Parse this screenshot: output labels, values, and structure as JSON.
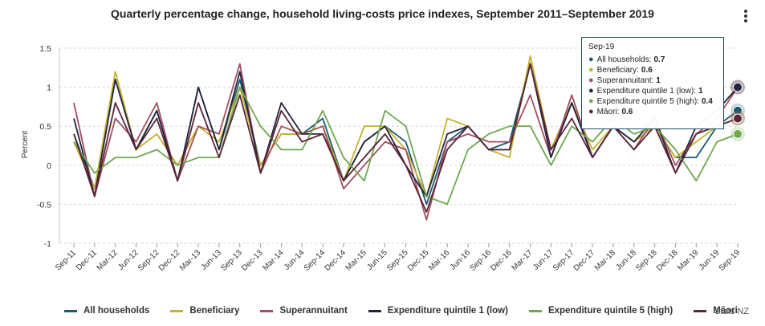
{
  "title": "Quarterly percentage change, household living-costs price indexes, September 2011–September 2019",
  "source": "Stats NZ",
  "menu_icon": "hamburger-menu-icon",
  "chart_data": {
    "type": "line",
    "title": "Quarterly percentage change, household living-costs price indexes, September 2011–September 2019",
    "xlabel": "",
    "ylabel": "Percent",
    "ylim": [
      -1,
      1.5
    ],
    "yticks": [
      "-1",
      "-0.5",
      "0",
      "0.5",
      "1",
      "1.5"
    ],
    "grid": "horizontal dashed",
    "legend_position": "bottom",
    "categories": [
      "Sep-11",
      "Dec-11",
      "Mar-12",
      "Jun-12",
      "Sep-12",
      "Dec-12",
      "Mar-13",
      "Jun-13",
      "Sep-13",
      "Dec-13",
      "Mar-14",
      "Jun-14",
      "Sep-14",
      "Dec-14",
      "Mar-15",
      "Jun-15",
      "Sep-15",
      "Dec-15",
      "Mar-16",
      "Jun-16",
      "Sep-16",
      "Dec-16",
      "Mar-17",
      "Jun-17",
      "Sep-17",
      "Dec-17",
      "Mar-18",
      "Jun-18",
      "Sep-18",
      "Dec-18",
      "Mar-19",
      "Jun-19",
      "Sep-19"
    ],
    "series": [
      {
        "name": "All households",
        "color": "#1b5a73",
        "values": [
          0.4,
          -0.3,
          1.1,
          0.2,
          0.7,
          -0.2,
          1.0,
          0.2,
          1.1,
          0.0,
          0.4,
          0.4,
          0.6,
          -0.2,
          0.3,
          0.5,
          0.3,
          -0.5,
          0.3,
          0.5,
          0.2,
          0.3,
          1.3,
          0.2,
          0.8,
          0.1,
          0.5,
          0.3,
          0.5,
          0.1,
          0.1,
          0.5,
          0.7
        ]
      },
      {
        "name": "Beneficiary",
        "color": "#c5b32e",
        "values": [
          0.3,
          -0.3,
          1.2,
          0.2,
          0.4,
          0.0,
          0.5,
          0.3,
          1.0,
          0.0,
          0.4,
          0.4,
          0.5,
          -0.2,
          0.5,
          0.5,
          0.2,
          -0.4,
          0.6,
          0.5,
          0.2,
          0.1,
          1.4,
          0.2,
          0.8,
          0.2,
          0.5,
          0.3,
          0.5,
          0.1,
          0.3,
          0.5,
          0.6
        ]
      },
      {
        "name": "Superannuitant",
        "color": "#a14f5e",
        "values": [
          0.8,
          -0.4,
          0.6,
          0.3,
          0.8,
          -0.2,
          0.5,
          0.4,
          1.3,
          -0.1,
          0.5,
          0.4,
          0.5,
          -0.3,
          0.0,
          0.3,
          0.2,
          -0.7,
          0.3,
          0.4,
          0.3,
          0.3,
          0.9,
          0.1,
          0.9,
          0.1,
          0.5,
          0.2,
          0.6,
          0.0,
          0.4,
          0.6,
          1.0
        ]
      },
      {
        "name": "Expenditure quintile 1 (low)",
        "color": "#24233f",
        "values": [
          0.6,
          -0.4,
          1.1,
          0.2,
          0.7,
          -0.2,
          1.0,
          0.2,
          1.2,
          -0.1,
          0.8,
          0.4,
          0.4,
          -0.2,
          0.3,
          0.5,
          0.0,
          -0.4,
          0.4,
          0.5,
          0.2,
          0.2,
          1.3,
          0.1,
          0.8,
          0.1,
          0.5,
          0.3,
          0.6,
          -0.1,
          0.5,
          0.7,
          1.0
        ]
      },
      {
        "name": "Expenditure quintile 5 (high)",
        "color": "#6ea84f",
        "values": [
          0.3,
          -0.1,
          0.1,
          0.1,
          0.2,
          0.0,
          0.1,
          0.1,
          1.0,
          0.5,
          0.2,
          0.2,
          0.7,
          0.1,
          -0.2,
          0.7,
          0.5,
          -0.4,
          -0.5,
          0.2,
          0.4,
          0.5,
          0.5,
          0.0,
          0.5,
          0.3,
          0.6,
          0.4,
          0.5,
          0.2,
          -0.2,
          0.3,
          0.4
        ]
      },
      {
        "name": "Māori",
        "color": "#5b2537",
        "values": [
          0.4,
          -0.4,
          0.8,
          0.2,
          0.6,
          -0.2,
          0.8,
          0.1,
          0.9,
          -0.1,
          0.7,
          0.3,
          0.4,
          -0.2,
          0.1,
          0.4,
          0.0,
          -0.6,
          0.2,
          0.5,
          0.2,
          0.2,
          1.3,
          0.2,
          0.6,
          0.1,
          0.5,
          0.2,
          0.5,
          -0.1,
          0.4,
          0.5,
          0.6
        ]
      }
    ]
  },
  "tooltip": {
    "date": "Sep-19",
    "rows": [
      {
        "label": "All households:",
        "value": "0.7",
        "color": "#1b5a73"
      },
      {
        "label": "Beneficiary:",
        "value": "0.6",
        "color": "#c5b32e"
      },
      {
        "label": "Superannuitant:",
        "value": "1",
        "color": "#a14f5e"
      },
      {
        "label": "Expenditure quintile 1 (low):",
        "value": "1",
        "color": "#24233f"
      },
      {
        "label": "Expenditure quintile 5 (high):",
        "value": "0.4",
        "color": "#6ea84f"
      },
      {
        "label": "Māori:",
        "value": "0.6",
        "color": "#5b2537"
      }
    ]
  }
}
